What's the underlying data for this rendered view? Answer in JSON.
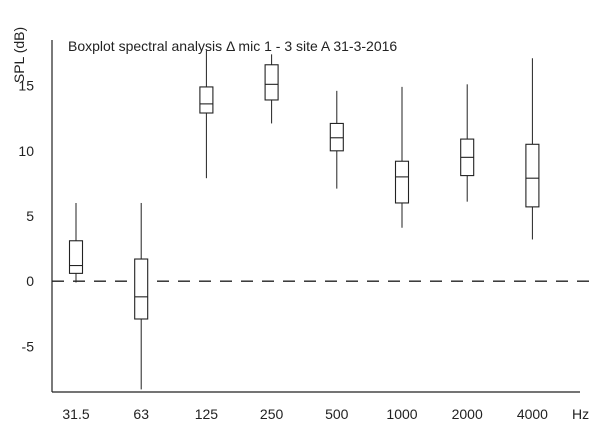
{
  "chart_data": {
    "type": "box",
    "title": "Boxplot spectral analysis Δ mic 1 - 3 site A 31-3-2016",
    "ylabel": "SPL (dB)",
    "xlabel": "Hz",
    "ylim": [
      -8.5,
      18.5
    ],
    "yticks": [
      -5,
      0,
      5,
      10,
      15
    ],
    "reference_line": 0,
    "categories": [
      "31.5",
      "63",
      "125",
      "250",
      "500",
      "1000",
      "2000",
      "4000"
    ],
    "boxes": [
      {
        "min": -0.1,
        "q1": 0.6,
        "median": 1.2,
        "q3": 3.1,
        "max": 6.0
      },
      {
        "min": -8.3,
        "q1": -2.9,
        "median": -1.2,
        "q3": 1.7,
        "max": 6.0
      },
      {
        "min": 7.9,
        "q1": 12.9,
        "median": 13.6,
        "q3": 14.9,
        "max": 17.7
      },
      {
        "min": 12.1,
        "q1": 13.9,
        "median": 15.1,
        "q3": 16.6,
        "max": 17.4
      },
      {
        "min": 7.1,
        "q1": 10.0,
        "median": 11.0,
        "q3": 12.1,
        "max": 14.6
      },
      {
        "min": 4.1,
        "q1": 6.0,
        "median": 8.0,
        "q3": 9.2,
        "max": 14.9
      },
      {
        "min": 6.1,
        "q1": 8.1,
        "median": 9.5,
        "q3": 10.9,
        "max": 15.1
      },
      {
        "min": 3.2,
        "q1": 5.7,
        "median": 7.9,
        "q3": 10.5,
        "max": 17.1
      }
    ],
    "grid": false
  }
}
